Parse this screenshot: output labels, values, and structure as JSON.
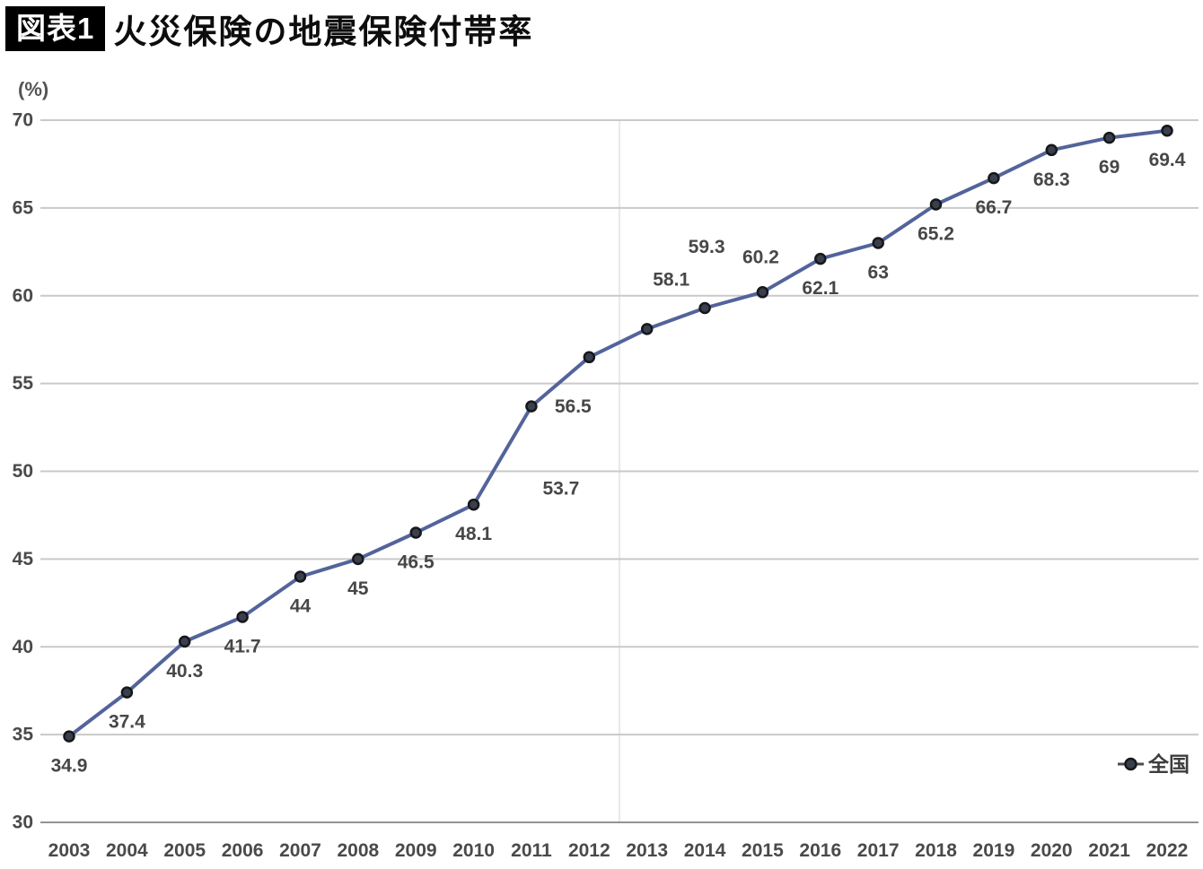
{
  "header": {
    "badge": "図表1",
    "title": "火災保険の地震保険付帯率"
  },
  "chart_data": {
    "type": "line",
    "title": "火災保険の地震保険付帯率",
    "unit_label": "(%)",
    "x": [
      2003,
      2004,
      2005,
      2006,
      2007,
      2008,
      2009,
      2010,
      2011,
      2012,
      2013,
      2014,
      2015,
      2016,
      2017,
      2018,
      2019,
      2020,
      2021,
      2022
    ],
    "series": [
      {
        "name": "全国",
        "values": [
          34.9,
          37.4,
          40.3,
          41.7,
          44,
          45,
          46.5,
          48.1,
          53.7,
          56.5,
          58.1,
          59.3,
          60.2,
          62.1,
          63,
          65.2,
          66.7,
          68.3,
          69,
          69.4
        ]
      }
    ],
    "ylim": [
      30,
      70
    ],
    "yticks": [
      30,
      35,
      40,
      45,
      50,
      55,
      60,
      65,
      70
    ],
    "grid": "horizontal",
    "data_labels": true,
    "legend_position": "bottom-right",
    "colors": {
      "line": "#53649b",
      "marker_fill": "#3a3f4c",
      "marker_stroke": "#16171c",
      "grid": "#c9c9c9",
      "axis": "#949494",
      "center_divider": "#e2e2e2",
      "tick_label": "#4a4a4a",
      "data_label": "#474747",
      "legend_symbol": "#4c4c4c",
      "badge_bg": "#000000",
      "badge_fg": "#ffffff"
    }
  }
}
